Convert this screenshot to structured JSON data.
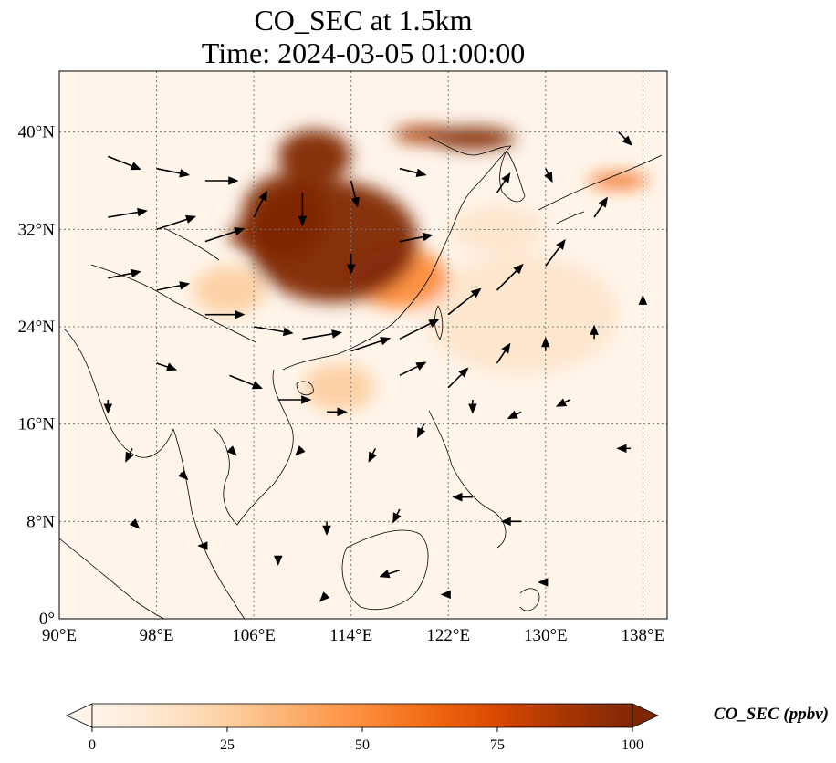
{
  "title": {
    "line1": "CO_SEC at 1.5km",
    "line2": "Time: 2024-03-05 01:00:00"
  },
  "map": {
    "lon_range": [
      90,
      140
    ],
    "lat_range": [
      0,
      45
    ],
    "lon_ticks": [
      {
        "value": 90,
        "label": "90°E"
      },
      {
        "value": 98,
        "label": "98°E"
      },
      {
        "value": 106,
        "label": "106°E"
      },
      {
        "value": 114,
        "label": "114°E"
      },
      {
        "value": 122,
        "label": "122°E"
      },
      {
        "value": 130,
        "label": "130°E"
      },
      {
        "value": 138,
        "label": "138°E"
      }
    ],
    "lat_ticks": [
      {
        "value": 0,
        "label": "0°"
      },
      {
        "value": 8,
        "label": "8°N"
      },
      {
        "value": 16,
        "label": "16°N"
      },
      {
        "value": 24,
        "label": "24°N"
      },
      {
        "value": 32,
        "label": "32°N"
      },
      {
        "value": 40,
        "label": "40°N"
      }
    ],
    "gridlines": true,
    "background_color": "#fff5eb",
    "plumes": [
      {
        "lon": 112.5,
        "lat": 31,
        "rlon": 7,
        "rlat": 5,
        "level": 100
      },
      {
        "lon": 108.5,
        "lat": 33,
        "rlon": 3.5,
        "rlat": 3.5,
        "level": 100
      },
      {
        "lon": 111,
        "lat": 38,
        "rlon": 3,
        "rlat": 2.2,
        "level": 100
      },
      {
        "lon": 106,
        "lat": 31.5,
        "rlon": 2,
        "rlat": 1.2,
        "level": 95
      },
      {
        "lon": 124,
        "lat": 39.5,
        "rlon": 3.5,
        "rlat": 0.9,
        "level": 100
      },
      {
        "lon": 120,
        "lat": 39.8,
        "rlon": 2.5,
        "rlat": 0.7,
        "level": 85
      },
      {
        "lon": 136,
        "lat": 36,
        "rlon": 2.5,
        "rlat": 0.6,
        "level": 60
      },
      {
        "lon": 118,
        "lat": 28,
        "rlon": 4,
        "rlat": 2.5,
        "level": 45
      },
      {
        "lon": 113,
        "lat": 19,
        "rlon": 3,
        "rlat": 2,
        "level": 30
      },
      {
        "lon": 104,
        "lat": 27,
        "rlon": 3,
        "rlat": 2,
        "level": 25
      },
      {
        "lon": 126,
        "lat": 32,
        "rlon": 4,
        "rlat": 2,
        "level": 15
      },
      {
        "lon": 128,
        "lat": 25,
        "rlon": 8,
        "rlat": 5,
        "level": 8
      }
    ],
    "wind_vectors": [
      {
        "lon": 94,
        "lat": 38,
        "u": 5,
        "v": -2
      },
      {
        "lon": 98,
        "lat": 37,
        "u": 5,
        "v": -1
      },
      {
        "lon": 102,
        "lat": 36,
        "u": 5,
        "v": 0
      },
      {
        "lon": 94,
        "lat": 33,
        "u": 6,
        "v": 1
      },
      {
        "lon": 98,
        "lat": 32,
        "u": 6,
        "v": 2
      },
      {
        "lon": 102,
        "lat": 31,
        "u": 6,
        "v": 2
      },
      {
        "lon": 106,
        "lat": 33,
        "u": 2,
        "v": 4
      },
      {
        "lon": 110,
        "lat": 35,
        "u": 0,
        "v": -5
      },
      {
        "lon": 114,
        "lat": 36,
        "u": 1,
        "v": -4
      },
      {
        "lon": 118,
        "lat": 37,
        "u": 4,
        "v": -1
      },
      {
        "lon": 114,
        "lat": 30,
        "u": 0,
        "v": -3
      },
      {
        "lon": 118,
        "lat": 31,
        "u": 5,
        "v": 1
      },
      {
        "lon": 94,
        "lat": 28,
        "u": 5,
        "v": 1
      },
      {
        "lon": 98,
        "lat": 27,
        "u": 5,
        "v": 1
      },
      {
        "lon": 102,
        "lat": 25,
        "u": 6,
        "v": 0
      },
      {
        "lon": 106,
        "lat": 24,
        "u": 6,
        "v": -1
      },
      {
        "lon": 110,
        "lat": 23,
        "u": 6,
        "v": 1
      },
      {
        "lon": 114,
        "lat": 22,
        "u": 6,
        "v": 2
      },
      {
        "lon": 118,
        "lat": 23,
        "u": 6,
        "v": 3
      },
      {
        "lon": 122,
        "lat": 25,
        "u": 5,
        "v": 4
      },
      {
        "lon": 126,
        "lat": 27,
        "u": 4,
        "v": 4
      },
      {
        "lon": 130,
        "lat": 29,
        "u": 3,
        "v": 4
      },
      {
        "lon": 134,
        "lat": 33,
        "u": 2,
        "v": 3
      },
      {
        "lon": 126,
        "lat": 35,
        "u": 2,
        "v": 3
      },
      {
        "lon": 130,
        "lat": 37,
        "u": 1,
        "v": -2
      },
      {
        "lon": 136,
        "lat": 40,
        "u": 2,
        "v": -2
      },
      {
        "lon": 98,
        "lat": 21,
        "u": 3,
        "v": -1
      },
      {
        "lon": 104,
        "lat": 20,
        "u": 5,
        "v": -2
      },
      {
        "lon": 108,
        "lat": 18,
        "u": 5,
        "v": 0
      },
      {
        "lon": 112,
        "lat": 17,
        "u": 3,
        "v": 0
      },
      {
        "lon": 118,
        "lat": 20,
        "u": 4,
        "v": 2
      },
      {
        "lon": 122,
        "lat": 19,
        "u": 3,
        "v": 3
      },
      {
        "lon": 126,
        "lat": 21,
        "u": 2,
        "v": 3
      },
      {
        "lon": 130,
        "lat": 22,
        "u": 0,
        "v": 2
      },
      {
        "lon": 134,
        "lat": 23,
        "u": 0,
        "v": 2
      },
      {
        "lon": 138,
        "lat": 26,
        "u": 0,
        "v": 1
      },
      {
        "lon": 94,
        "lat": 18,
        "u": 0,
        "v": -2
      },
      {
        "lon": 96,
        "lat": 14,
        "u": -1,
        "v": -2
      },
      {
        "lon": 100,
        "lat": 12,
        "u": 1,
        "v": -1
      },
      {
        "lon": 104,
        "lat": 14,
        "u": 1,
        "v": -1
      },
      {
        "lon": 110,
        "lat": 14,
        "u": -1,
        "v": -1
      },
      {
        "lon": 116,
        "lat": 14,
        "u": -1,
        "v": -2
      },
      {
        "lon": 120,
        "lat": 16,
        "u": -1,
        "v": -2
      },
      {
        "lon": 124,
        "lat": 18,
        "u": 0,
        "v": -2
      },
      {
        "lon": 128,
        "lat": 17,
        "u": -2,
        "v": -1
      },
      {
        "lon": 132,
        "lat": 18,
        "u": -2,
        "v": -1
      },
      {
        "lon": 137,
        "lat": 14,
        "u": -2,
        "v": 0
      },
      {
        "lon": 96,
        "lat": 8,
        "u": 1,
        "v": -1
      },
      {
        "lon": 102,
        "lat": 6,
        "u": -1,
        "v": 0
      },
      {
        "lon": 108,
        "lat": 5,
        "u": 0,
        "v": -1
      },
      {
        "lon": 112,
        "lat": 8,
        "u": 0,
        "v": -2
      },
      {
        "lon": 118,
        "lat": 9,
        "u": -1,
        "v": -2
      },
      {
        "lon": 124,
        "lat": 10,
        "u": -3,
        "v": 0
      },
      {
        "lon": 128,
        "lat": 8,
        "u": -3,
        "v": 0
      },
      {
        "lon": 118,
        "lat": 4,
        "u": -3,
        "v": -1
      },
      {
        "lon": 112,
        "lat": 2,
        "u": -1,
        "v": -1
      },
      {
        "lon": 122,
        "lat": 2,
        "u": -1,
        "v": 0
      },
      {
        "lon": 130,
        "lat": 3,
        "u": -1,
        "v": 0
      }
    ]
  },
  "colorbar": {
    "label": "CO_SEC (ppbv)",
    "min": 0,
    "max": 100,
    "ticks": [
      {
        "value": 0,
        "label": "0"
      },
      {
        "value": 25,
        "label": "25"
      },
      {
        "value": 50,
        "label": "50"
      },
      {
        "value": 75,
        "label": "75"
      },
      {
        "value": 100,
        "label": "100"
      }
    ],
    "colors": [
      "#fff5eb",
      "#fee6ce",
      "#fdd0a2",
      "#fdae6b",
      "#fd8d3c",
      "#f16913",
      "#d94801",
      "#a63603",
      "#7f2704"
    ],
    "extend": "both"
  }
}
